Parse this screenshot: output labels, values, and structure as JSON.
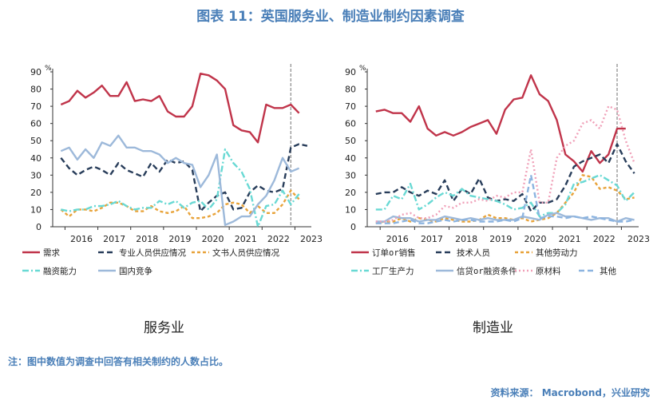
{
  "title": "图表 11：英国服务业、制造业制约因素调查",
  "note": "注：图中数值为调查中回答有相关制约的人数占比。",
  "source": "资料来源：   Macrobond，兴业研究",
  "chart_data": [
    {
      "type": "line",
      "caption": "服务业",
      "unit": "%",
      "ylim": [
        0,
        90
      ],
      "yticks": [
        "0",
        "10",
        "20",
        "30",
        "40",
        "50",
        "60",
        "70",
        "80",
        "90"
      ],
      "xlim": [
        2015.625,
        2023.5
      ],
      "xtick_labels": [
        "2016",
        "2017",
        "2018",
        "2019",
        "2020",
        "2021",
        "2022",
        "2023"
      ],
      "vline_x": 2022.875,
      "x": [
        2015.875,
        2016.125,
        2016.375,
        2016.625,
        2016.875,
        2017.125,
        2017.375,
        2017.625,
        2017.875,
        2018.125,
        2018.375,
        2018.625,
        2018.875,
        2019.125,
        2019.375,
        2019.625,
        2019.875,
        2020.125,
        2020.375,
        2020.625,
        2020.875,
        2021.125,
        2021.375,
        2021.625,
        2021.875,
        2022.125,
        2022.375,
        2022.625,
        2022.875,
        2023.125,
        2023.375
      ],
      "series": [
        {
          "name": "需求",
          "color": "#c0344a",
          "dash": "",
          "values": [
            71,
            73,
            79,
            75,
            78,
            82,
            76,
            76,
            84,
            73,
            74,
            73,
            76,
            67,
            64,
            64,
            70,
            89,
            88,
            85,
            80,
            59,
            56,
            55,
            49,
            71,
            69,
            69,
            71,
            66,
            null
          ]
        },
        {
          "name": "专业人员供应情况",
          "color": "#283d5a",
          "dash": "7 4",
          "values": [
            40,
            34,
            30,
            33,
            35,
            33,
            30,
            37,
            33,
            31,
            29,
            37,
            32,
            39,
            37,
            38,
            33,
            9,
            14,
            18,
            20,
            10,
            11,
            20,
            24,
            21,
            20,
            22,
            46,
            48,
            47
          ]
        },
        {
          "name": "文书人员供应情况",
          "color": "#e8a33a",
          "dash": "4 3",
          "values": [
            10,
            6,
            10,
            10,
            9,
            11,
            14,
            14,
            12,
            9,
            9,
            12,
            9,
            8,
            9,
            12,
            5,
            5,
            6,
            8,
            13,
            14,
            13,
            8,
            12,
            8,
            8,
            13,
            21,
            16,
            null
          ]
        },
        {
          "name": "融资能力",
          "color": "#69d9d4",
          "dash": "8 3 2 3",
          "values": [
            10,
            9,
            10,
            10,
            12,
            12,
            13,
            15,
            12,
            10,
            11,
            11,
            15,
            13,
            15,
            11,
            14,
            15,
            10,
            16,
            45,
            37,
            32,
            22,
            0,
            12,
            13,
            21,
            13,
            19,
            null
          ]
        },
        {
          "name": "国内竞争",
          "color": "#9db9da",
          "dash": "",
          "values": [
            44,
            46,
            39,
            45,
            40,
            49,
            47,
            53,
            46,
            46,
            44,
            44,
            42,
            37,
            40,
            37,
            36,
            23,
            30,
            42,
            1,
            3,
            6,
            6,
            13,
            18,
            27,
            40,
            32,
            34,
            null
          ]
        }
      ]
    },
    {
      "type": "line",
      "caption": "制造业",
      "unit": "%",
      "ylim": [
        0,
        90
      ],
      "yticks": [
        "0",
        "10",
        "20",
        "30",
        "40",
        "50",
        "60",
        "70",
        "80",
        "90"
      ],
      "xlim": [
        2015.625,
        2023.5
      ],
      "xtick_labels": [
        "2016",
        "2017",
        "2018",
        "2019",
        "2020",
        "2021",
        "2022",
        "2023"
      ],
      "vline_x": 2022.875,
      "x": [
        2015.875,
        2016.125,
        2016.375,
        2016.625,
        2016.875,
        2017.125,
        2017.375,
        2017.625,
        2017.875,
        2018.125,
        2018.375,
        2018.625,
        2018.875,
        2019.125,
        2019.375,
        2019.625,
        2019.875,
        2020.125,
        2020.375,
        2020.625,
        2020.875,
        2021.125,
        2021.375,
        2021.625,
        2021.875,
        2022.125,
        2022.375,
        2022.625,
        2022.875,
        2023.125,
        2023.375
      ],
      "series": [
        {
          "name": "订单or销售",
          "color": "#c0344a",
          "dash": "",
          "values": [
            67,
            68,
            66,
            66,
            61,
            70,
            57,
            53,
            55,
            53,
            55,
            58,
            60,
            62,
            54,
            68,
            74,
            75,
            88,
            77,
            73,
            62,
            42,
            38,
            32,
            44,
            37,
            42,
            57,
            57,
            null
          ]
        },
        {
          "name": "技术人员",
          "color": "#283d5a",
          "dash": "7 4",
          "values": [
            19,
            20,
            20,
            23,
            20,
            18,
            21,
            19,
            27,
            15,
            22,
            19,
            28,
            17,
            15,
            16,
            15,
            19,
            9,
            14,
            14,
            16,
            24,
            35,
            38,
            40,
            42,
            37,
            48,
            38,
            31
          ]
        },
        {
          "name": "其他劳动力",
          "color": "#e8a33a",
          "dash": "4 3",
          "values": [
            2,
            3,
            3,
            5,
            3,
            5,
            4,
            3,
            5,
            4,
            3,
            3,
            4,
            7,
            5,
            5,
            4,
            5,
            3,
            4,
            5,
            8,
            14,
            20,
            30,
            29,
            22,
            23,
            21,
            16,
            17
          ]
        },
        {
          "name": "工厂生产力",
          "color": "#69d9d4",
          "dash": "8 3 2 3",
          "values": [
            10,
            10,
            18,
            16,
            25,
            10,
            13,
            17,
            20,
            18,
            22,
            18,
            17,
            16,
            15,
            13,
            10,
            11,
            14,
            6,
            8,
            8,
            13,
            25,
            26,
            28,
            30,
            27,
            24,
            15,
            20
          ]
        },
        {
          "name": "信贷or融资条件",
          "color": "#9db9da",
          "dash": "",
          "values": [
            3,
            3,
            6,
            5,
            5,
            3,
            4,
            4,
            6,
            5,
            4,
            5,
            4,
            5,
            4,
            4,
            4,
            6,
            5,
            4,
            7,
            8,
            6,
            6,
            5,
            4,
            5,
            5,
            3,
            5,
            4
          ]
        },
        {
          "name": "原材料",
          "color": "#f0a0b8",
          "dash": "2 3",
          "values": [
            3,
            3,
            4,
            7,
            8,
            5,
            5,
            7,
            12,
            11,
            14,
            14,
            16,
            15,
            18,
            17,
            20,
            20,
            45,
            14,
            14,
            40,
            47,
            50,
            60,
            62,
            57,
            70,
            68,
            50,
            37
          ]
        },
        {
          "name": "其他",
          "color": "#8cb4e0",
          "dash": "7 4",
          "values": [
            2,
            2,
            2,
            3,
            4,
            2,
            2,
            3,
            4,
            3,
            4,
            4,
            3,
            3,
            3,
            4,
            3,
            5,
            30,
            5,
            6,
            6,
            5,
            6,
            5,
            6,
            5,
            4,
            3,
            3,
            4
          ]
        }
      ]
    }
  ]
}
